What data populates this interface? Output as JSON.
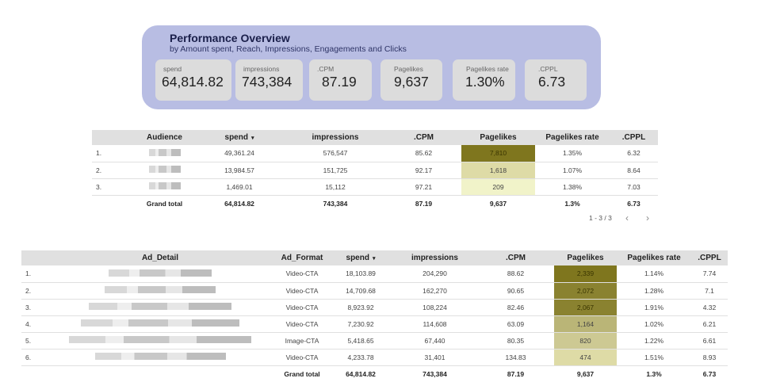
{
  "overview": {
    "title": "Performance Overview",
    "subtitle": "by Amount spent, Reach, Impressions, Engagements and Clicks",
    "cards": [
      {
        "label": "spend",
        "value": "64,814.82"
      },
      {
        "label": "impressions",
        "value": "743,384"
      },
      {
        "label": ".CPM",
        "value": "87.19"
      },
      {
        "label": "Pagelikes",
        "value": "9,637"
      },
      {
        "label": "Pagelikes rate",
        "value": "1.30%"
      },
      {
        "label": ".CPPL",
        "value": "6.73"
      }
    ]
  },
  "audience_table": {
    "headers": [
      "Audience",
      "spend",
      "impressions",
      ".CPM",
      "Pagelikes",
      "Pagelikes rate",
      ".CPPL"
    ],
    "sort_indicator": "▾",
    "rows": [
      {
        "idx": "1.",
        "spend": "49,361.24",
        "impressions": "576,547",
        "cpm": "85.62",
        "pagelikes": "7,810",
        "rate": "1.35%",
        "cppl": "6.32",
        "heat": "#7f761e",
        "fg": "#3a3500"
      },
      {
        "idx": "2.",
        "spend": "13,984.57",
        "impressions": "151,725",
        "cpm": "92.17",
        "pagelikes": "1,618",
        "rate": "1.07%",
        "cppl": "8.64",
        "heat": "#dedba6",
        "fg": "#444"
      },
      {
        "idx": "3.",
        "spend": "1,469.01",
        "impressions": "15,112",
        "cpm": "97.21",
        "pagelikes": "209",
        "rate": "1.38%",
        "cppl": "7.03",
        "heat": "#f1f3c9",
        "fg": "#444"
      }
    ],
    "total": {
      "label": "Grand total",
      "spend": "64,814.82",
      "impressions": "743,384",
      "cpm": "87.19",
      "pagelikes": "9,637",
      "rate": "1.3%",
      "cppl": "6.73"
    },
    "pager": "1 - 3 / 3",
    "prev_icon": "‹",
    "next_icon": "›"
  },
  "ad_table": {
    "headers": [
      "Ad_Detail",
      "Ad_Format",
      "spend",
      "impressions",
      ".CPM",
      "Pagelikes",
      "Pagelikes rate",
      ".CPPL"
    ],
    "sort_indicator": "▾",
    "rows": [
      {
        "idx": "1.",
        "format": "Video-CTA",
        "spend": "18,103.89",
        "impressions": "204,290",
        "cpm": "88.62",
        "pagelikes": "2,339",
        "rate": "1.14%",
        "cppl": "7.74",
        "heat": "#7f761e",
        "fg": "#3a3500"
      },
      {
        "idx": "2.",
        "format": "Video-CTA",
        "spend": "14,709.68",
        "impressions": "162,270",
        "cpm": "90.65",
        "pagelikes": "2,072",
        "rate": "1.28%",
        "cppl": "7.1",
        "heat": "#8a8230",
        "fg": "#3a3500"
      },
      {
        "idx": "3.",
        "format": "Video-CTA",
        "spend": "8,923.92",
        "impressions": "108,224",
        "cpm": "82.46",
        "pagelikes": "2,067",
        "rate": "1.91%",
        "cppl": "4.32",
        "heat": "#8a8230",
        "fg": "#3a3500"
      },
      {
        "idx": "4.",
        "format": "Video-CTA",
        "spend": "7,230.92",
        "impressions": "114,608",
        "cpm": "63.09",
        "pagelikes": "1,164",
        "rate": "1.02%",
        "cppl": "6.21",
        "heat": "#bab577",
        "fg": "#444"
      },
      {
        "idx": "5.",
        "format": "Image-CTA",
        "spend": "5,418.65",
        "impressions": "67,440",
        "cpm": "80.35",
        "pagelikes": "820",
        "rate": "1.22%",
        "cppl": "6.61",
        "heat": "#cdc993",
        "fg": "#444"
      },
      {
        "idx": "6.",
        "format": "Video-CTA",
        "spend": "4,233.78",
        "impressions": "31,401",
        "cpm": "134.83",
        "pagelikes": "474",
        "rate": "1.51%",
        "cppl": "8.93",
        "heat": "#dedba6",
        "fg": "#444"
      }
    ],
    "total": {
      "label": "Grand total",
      "spend": "64,814.82",
      "impressions": "743,384",
      "cpm": "87.19",
      "pagelikes": "9,637",
      "rate": "1.3%",
      "cppl": "6.73"
    }
  }
}
